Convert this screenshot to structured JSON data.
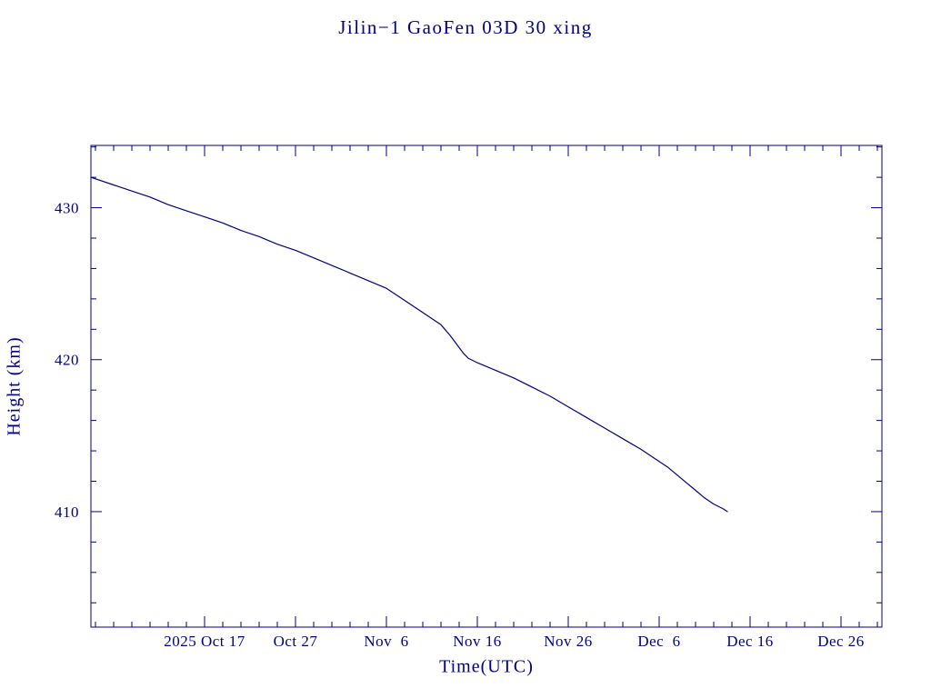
{
  "page": {
    "background": "#ffffff",
    "accent_color": "#000080"
  },
  "chart_data": {
    "type": "line",
    "title": "Jilin−1 GaoFen 03D 30 xing",
    "xlabel": "Time(UTC)",
    "ylabel": "Height (km)",
    "grid": false,
    "legend": "none",
    "line_color": "#000080",
    "frame_color": "#000080",
    "x_unit_note": "days, where 0 = 2025 Oct 1 (axis shows date labels)",
    "xlim": [
      3.5,
      90.5
    ],
    "ylim": [
      402.4,
      434.1
    ],
    "x_major_ticks": [
      {
        "value": 16,
        "label": "2025 Oct 17"
      },
      {
        "value": 26,
        "label": "Oct 27"
      },
      {
        "value": 36,
        "label": "Nov  6"
      },
      {
        "value": 46,
        "label": "Nov 16"
      },
      {
        "value": 56,
        "label": "Nov 26"
      },
      {
        "value": 66,
        "label": "Dec  6"
      },
      {
        "value": 76,
        "label": "Dec 16"
      },
      {
        "value": 86,
        "label": "Dec 26"
      }
    ],
    "y_major_ticks": [
      {
        "value": 410,
        "label": "410"
      },
      {
        "value": 420,
        "label": "420"
      },
      {
        "value": 430,
        "label": "430"
      }
    ],
    "x_minor_step": 2,
    "y_minor_step": 2,
    "series": [
      {
        "name": "Height (km)",
        "x": [
          3.5,
          6,
          8,
          10,
          12,
          14,
          16,
          18,
          20,
          22,
          24,
          26,
          28,
          30,
          32,
          34,
          36,
          38,
          40,
          42,
          43,
          44,
          44.5,
          45,
          46,
          48,
          50,
          52,
          54,
          56,
          58,
          60,
          62,
          64,
          66,
          67,
          68,
          69,
          70,
          71,
          72,
          73,
          73.5
        ],
        "y": [
          432.0,
          431.5,
          431.1,
          430.7,
          430.2,
          429.8,
          429.4,
          429.0,
          428.5,
          428.1,
          427.6,
          427.2,
          426.7,
          426.2,
          425.7,
          425.2,
          424.7,
          423.9,
          423.1,
          422.3,
          421.6,
          420.8,
          420.4,
          420.1,
          419.8,
          419.3,
          418.8,
          418.2,
          417.6,
          416.9,
          416.2,
          415.5,
          414.8,
          414.1,
          413.3,
          412.9,
          412.4,
          411.9,
          411.4,
          410.9,
          410.5,
          410.2,
          410.0
        ]
      }
    ]
  }
}
